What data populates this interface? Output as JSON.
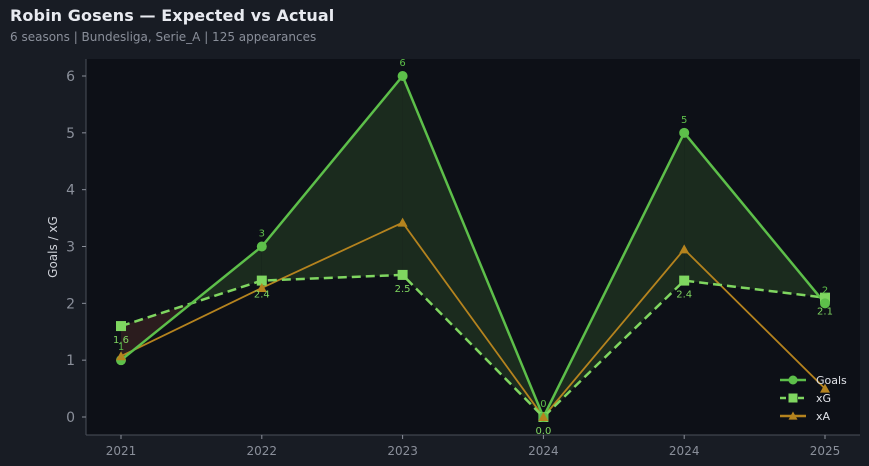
{
  "header": {
    "title": "Robin Gosens — Expected vs Actual",
    "subtitle": "6 seasons | Bundesliga, Serie_A | 125 appearances"
  },
  "colors": {
    "background": "#181c24",
    "plot_background": "#0d1017",
    "goals": "#5dbf4a",
    "xg": "#7fd660",
    "xa": "#b5831e",
    "fill_over": "#1b2b1e",
    "fill_under": "#2b1c1e",
    "grid_axis": "#4a4f5a"
  },
  "chart_data": {
    "type": "line",
    "title": "Robin Gosens — Expected vs Actual",
    "subtitle": "6 seasons | Bundesliga, Serie_A | 125 appearances",
    "xlabel": "",
    "ylabel": "Goals / xG",
    "categories": [
      "2021",
      "2022",
      "2023",
      "2024",
      "2024",
      "2025"
    ],
    "ylim": [
      -0.3,
      6.3
    ],
    "yticks": [
      0,
      1,
      2,
      3,
      4,
      5,
      6
    ],
    "grid": false,
    "legend_position": "lower right",
    "series": [
      {
        "name": "Goals",
        "marker": "circle",
        "linestyle": "solid",
        "values": [
          1,
          3,
          6,
          0,
          5,
          2
        ],
        "labels": [
          "1",
          "3",
          "6",
          "0",
          "5",
          "2"
        ]
      },
      {
        "name": "xG",
        "marker": "square",
        "linestyle": "dashed",
        "values": [
          1.6,
          2.4,
          2.5,
          0.0,
          2.4,
          2.1
        ],
        "labels": [
          "1.6",
          "2.4",
          "2.5",
          "0.0",
          "2.4",
          "2.1"
        ]
      },
      {
        "name": "xA",
        "marker": "triangle",
        "linestyle": "solid",
        "values": [
          1.07,
          2.27,
          3.42,
          0.0,
          2.95,
          0.5
        ]
      }
    ],
    "fill_between": {
      "upper": "Goals",
      "lower": "xG",
      "over_color": "green",
      "under_color": "red"
    }
  },
  "legend": {
    "items": [
      {
        "label": "Goals"
      },
      {
        "label": "xG"
      },
      {
        "label": "xA"
      }
    ]
  }
}
